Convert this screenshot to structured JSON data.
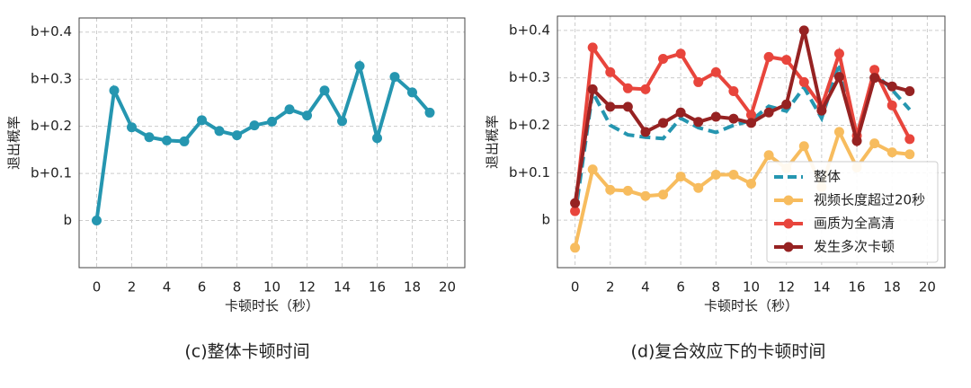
{
  "chart_data": [
    {
      "type": "line",
      "caption": "(c)整体卡顿时间",
      "xlabel": "卡顿时长（秒）",
      "ylabel": "退出概率",
      "x": [
        0,
        1,
        2,
        3,
        4,
        5,
        6,
        7,
        8,
        9,
        10,
        11,
        12,
        13,
        14,
        15,
        16,
        17,
        18,
        19
      ],
      "series": [
        {
          "color": "#2596b0",
          "linestyle": "solid",
          "marker": true,
          "values": [
            0.0,
            0.276,
            0.198,
            0.177,
            0.17,
            0.168,
            0.213,
            0.19,
            0.181,
            0.202,
            0.21,
            0.236,
            0.223,
            0.276,
            0.211,
            0.328,
            0.175,
            0.305,
            0.272,
            0.229
          ]
        }
      ],
      "xlim": [
        -1,
        21
      ],
      "xticks": [
        0,
        2,
        4,
        6,
        8,
        10,
        12,
        14,
        16,
        18,
        20
      ],
      "ylim": [
        -0.1,
        0.43
      ],
      "yticks": [
        {
          "value": 0,
          "label": "b"
        },
        {
          "value": 0.1,
          "label": "b+0.1"
        },
        {
          "value": 0.2,
          "label": "b+0.2"
        },
        {
          "value": 0.3,
          "label": "b+0.3"
        },
        {
          "value": 0.4,
          "label": "b+0.4"
        }
      ],
      "grid": true
    },
    {
      "type": "line",
      "caption": "(d)复合效应下的卡顿时间",
      "xlabel": "卡顿时长（秒）",
      "ylabel": "退出概率",
      "x": [
        0,
        1,
        2,
        3,
        4,
        5,
        6,
        7,
        8,
        9,
        10,
        11,
        12,
        13,
        14,
        15,
        16,
        17,
        18,
        19
      ],
      "series": [
        {
          "name": "整体",
          "color": "#2596b0",
          "linestyle": "dashed",
          "marker": false,
          "values": [
            0.01,
            0.27,
            0.2,
            0.18,
            0.175,
            0.172,
            0.215,
            0.195,
            0.185,
            0.2,
            0.21,
            0.24,
            0.23,
            0.28,
            0.215,
            0.33,
            0.18,
            0.31,
            0.275,
            0.233
          ]
        },
        {
          "name": "视频长度超过20秒",
          "color": "#f7bc5e",
          "linestyle": "solid",
          "marker": true,
          "values": [
            -0.058,
            0.107,
            0.064,
            0.062,
            0.051,
            0.054,
            0.092,
            0.068,
            0.096,
            0.096,
            0.077,
            0.137,
            0.109,
            0.156,
            0.07,
            0.186,
            0.111,
            0.162,
            0.143,
            0.139
          ]
        },
        {
          "name": "画质为全高清",
          "color": "#e8453c",
          "linestyle": "solid",
          "marker": true,
          "values": [
            0.019,
            0.364,
            0.312,
            0.278,
            0.276,
            0.34,
            0.351,
            0.291,
            0.312,
            0.272,
            0.222,
            0.344,
            0.338,
            0.291,
            0.239,
            0.351,
            0.178,
            0.317,
            0.242,
            0.171
          ]
        },
        {
          "name": "发生多次卡顿",
          "color": "#962222",
          "linestyle": "solid",
          "marker": true,
          "values": [
            0.036,
            0.276,
            0.239,
            0.239,
            0.186,
            0.205,
            0.227,
            0.207,
            0.218,
            0.214,
            0.205,
            0.227,
            0.244,
            0.4,
            0.231,
            0.302,
            0.167,
            0.3,
            0.282,
            0.272
          ]
        }
      ],
      "xlim": [
        -1,
        21
      ],
      "xticks": [
        0,
        2,
        4,
        6,
        8,
        10,
        12,
        14,
        16,
        18,
        20
      ],
      "ylim": [
        -0.1,
        0.43
      ],
      "yticks": [
        {
          "value": 0,
          "label": "b"
        },
        {
          "value": 0.1,
          "label": "b+0.1"
        },
        {
          "value": 0.2,
          "label": "b+0.2"
        },
        {
          "value": 0.3,
          "label": "b+0.3"
        },
        {
          "value": 0.4,
          "label": "b+0.4"
        }
      ],
      "grid": true,
      "legend": "lower right"
    }
  ]
}
